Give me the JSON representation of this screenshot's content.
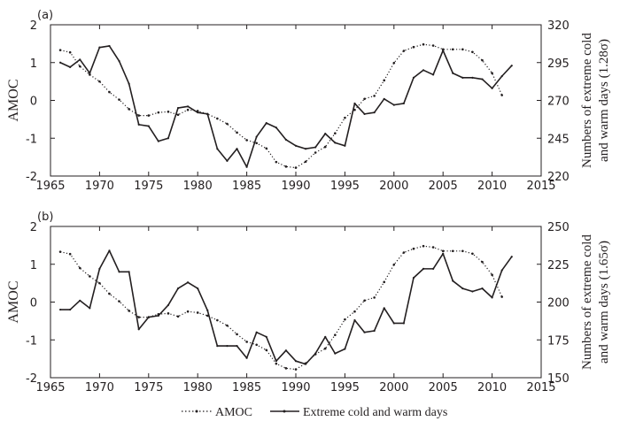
{
  "legend": {
    "amoc": "AMOC",
    "extreme": "Extreme cold and warm days",
    "placement": "bottom-center"
  },
  "chart_data": [
    {
      "type": "line",
      "title": "(a)",
      "xlabel": "",
      "ylabel": "AMOC",
      "ylabel_right": "Numbers of extreme cold",
      "ylabel_right2": "and warm days (1.28σ)",
      "xlim": [
        1965,
        2015
      ],
      "xticks": [
        1965,
        1970,
        1975,
        1980,
        1985,
        1990,
        1995,
        2000,
        2005,
        2010,
        2015
      ],
      "ylim": [
        -2,
        2
      ],
      "yticks": [
        -2,
        -1,
        0,
        1,
        2
      ],
      "ylim_right": [
        220,
        320
      ],
      "yticks_right": [
        220,
        245,
        270,
        295,
        320
      ],
      "series": [
        {
          "name": "AMOC",
          "axis": "left",
          "style": "dotted",
          "x": [
            1966,
            1967,
            1968,
            1969,
            1970,
            1971,
            1972,
            1973,
            1974,
            1975,
            1976,
            1977,
            1978,
            1979,
            1980,
            1981,
            1982,
            1983,
            1984,
            1985,
            1986,
            1987,
            1988,
            1989,
            1990,
            1991,
            1992,
            1993,
            1994,
            1995,
            1996,
            1997,
            1998,
            1999,
            2000,
            2001,
            2002,
            2003,
            2004,
            2005,
            2006,
            2007,
            2008,
            2009,
            2010,
            2011
          ],
          "values": [
            1.33,
            1.27,
            0.9,
            0.68,
            0.5,
            0.22,
            0.02,
            -0.23,
            -0.4,
            -0.4,
            -0.32,
            -0.3,
            -0.38,
            -0.25,
            -0.28,
            -0.36,
            -0.48,
            -0.62,
            -0.85,
            -1.05,
            -1.13,
            -1.27,
            -1.63,
            -1.75,
            -1.78,
            -1.62,
            -1.38,
            -1.23,
            -0.87,
            -0.46,
            -0.25,
            0.04,
            0.12,
            0.53,
            0.99,
            1.31,
            1.41,
            1.48,
            1.45,
            1.35,
            1.35,
            1.35,
            1.28,
            1.06,
            0.72,
            0.14
          ]
        },
        {
          "name": "Extreme cold and warm days",
          "axis": "right",
          "style": "solid",
          "x": [
            1966,
            1967,
            1968,
            1969,
            1970,
            1971,
            1972,
            1973,
            1974,
            1975,
            1976,
            1977,
            1978,
            1979,
            1980,
            1981,
            1982,
            1983,
            1984,
            1985,
            1986,
            1987,
            1988,
            1989,
            1990,
            1991,
            1992,
            1993,
            1994,
            1995,
            1996,
            1997,
            1998,
            1999,
            2000,
            2001,
            2002,
            2003,
            2004,
            2005,
            2006,
            2007,
            2008,
            2009,
            2010,
            2011,
            2012
          ],
          "values": [
            295,
            292,
            297,
            288,
            305,
            306,
            296,
            281,
            254,
            253,
            243,
            245,
            265,
            266,
            262,
            261,
            238,
            230,
            238,
            226,
            246,
            255,
            252,
            244,
            240,
            238,
            239,
            248,
            242,
            240,
            268,
            261,
            262,
            271,
            267,
            268,
            285,
            290,
            287,
            303,
            288,
            285,
            285,
            284,
            278,
            286,
            293
          ]
        }
      ]
    },
    {
      "type": "line",
      "title": "(b)",
      "xlabel": "",
      "ylabel": "AMOC",
      "ylabel_right": "Numbers of extreme cold",
      "ylabel_right2": "and warm days (1.65σ)",
      "xlim": [
        1965,
        2015
      ],
      "xticks": [
        1965,
        1970,
        1975,
        1980,
        1985,
        1990,
        1995,
        2000,
        2005,
        2010,
        2015
      ],
      "ylim": [
        -2,
        2
      ],
      "yticks": [
        -2,
        -1,
        0,
        1,
        2
      ],
      "ylim_right": [
        150,
        250
      ],
      "yticks_right": [
        150,
        175,
        200,
        225,
        250
      ],
      "series": [
        {
          "name": "AMOC",
          "axis": "left",
          "style": "dotted",
          "x": [
            1966,
            1967,
            1968,
            1969,
            1970,
            1971,
            1972,
            1973,
            1974,
            1975,
            1976,
            1977,
            1978,
            1979,
            1980,
            1981,
            1982,
            1983,
            1984,
            1985,
            1986,
            1987,
            1988,
            1989,
            1990,
            1991,
            1992,
            1993,
            1994,
            1995,
            1996,
            1997,
            1998,
            1999,
            2000,
            2001,
            2002,
            2003,
            2004,
            2005,
            2006,
            2007,
            2008,
            2009,
            2010,
            2011
          ],
          "values": [
            1.33,
            1.27,
            0.9,
            0.68,
            0.5,
            0.22,
            0.02,
            -0.23,
            -0.4,
            -0.4,
            -0.32,
            -0.3,
            -0.38,
            -0.25,
            -0.28,
            -0.36,
            -0.48,
            -0.62,
            -0.85,
            -1.05,
            -1.13,
            -1.27,
            -1.63,
            -1.75,
            -1.78,
            -1.62,
            -1.38,
            -1.23,
            -0.87,
            -0.46,
            -0.25,
            0.04,
            0.12,
            0.53,
            0.99,
            1.31,
            1.41,
            1.48,
            1.45,
            1.35,
            1.35,
            1.35,
            1.28,
            1.06,
            0.72,
            0.14
          ]
        },
        {
          "name": "Extreme cold and warm days",
          "axis": "right",
          "style": "solid",
          "x": [
            1966,
            1967,
            1968,
            1969,
            1970,
            1971,
            1972,
            1973,
            1974,
            1975,
            1976,
            1977,
            1978,
            1979,
            1980,
            1981,
            1982,
            1983,
            1984,
            1985,
            1986,
            1987,
            1988,
            1989,
            1990,
            1991,
            1992,
            1993,
            1994,
            1995,
            1996,
            1997,
            1998,
            1999,
            2000,
            2001,
            2002,
            2003,
            2004,
            2005,
            2006,
            2007,
            2008,
            2009,
            2010,
            2011,
            2012
          ],
          "values": [
            195,
            195,
            201,
            196,
            222,
            234,
            220,
            220,
            182,
            190,
            191,
            198,
            209,
            213,
            209,
            194.5,
            171,
            171,
            171,
            163,
            180,
            177,
            161,
            168,
            161,
            159,
            166,
            177,
            166,
            169,
            188,
            180,
            181,
            196,
            186,
            186,
            216,
            222,
            222,
            232,
            214,
            209,
            207,
            209,
            203,
            221,
            230
          ]
        }
      ]
    }
  ]
}
